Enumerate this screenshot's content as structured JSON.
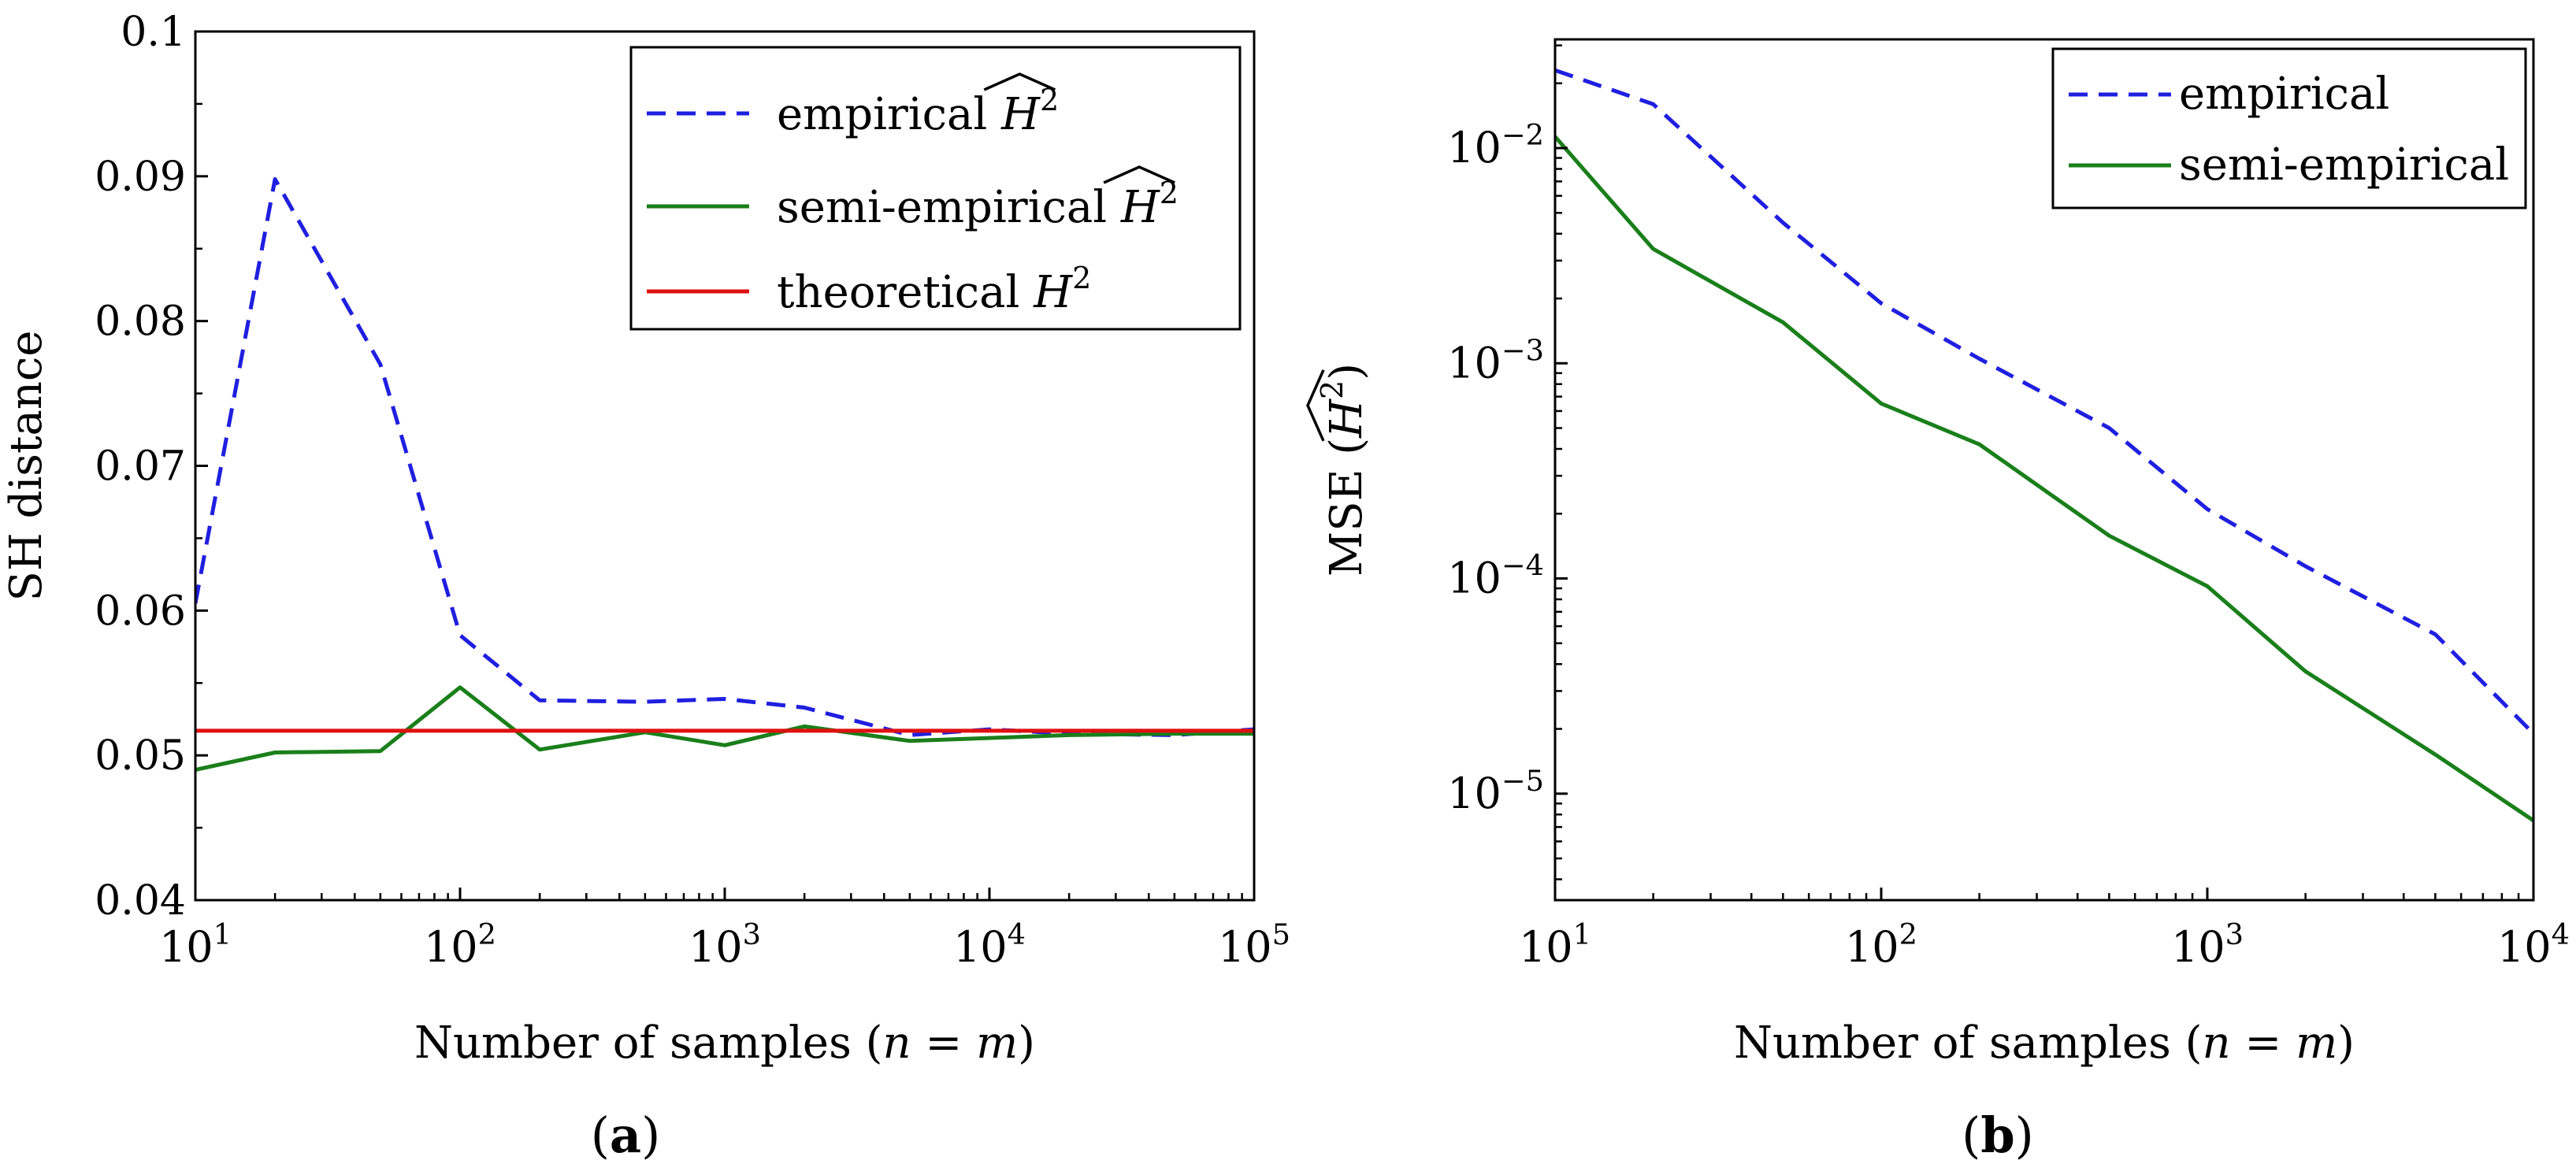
{
  "figure": {
    "panel_labels": [
      "(a)",
      "(b)"
    ]
  },
  "chart_data": [
    {
      "type": "line",
      "panel": "(a)",
      "title": "",
      "xlabel": "Number of samples (n = m)",
      "ylabel": "SH distance",
      "xscale": "log",
      "yscale": "linear",
      "xlim": [
        10,
        100000
      ],
      "ylim": [
        0.04,
        0.1
      ],
      "xticks": [
        10,
        100,
        1000,
        10000,
        100000
      ],
      "xtick_labels": [
        {
          "base": "10",
          "exp": "1"
        },
        {
          "base": "10",
          "exp": "2"
        },
        {
          "base": "10",
          "exp": "3"
        },
        {
          "base": "10",
          "exp": "4"
        },
        {
          "base": "10",
          "exp": "5"
        }
      ],
      "yticks": [
        0.04,
        0.05,
        0.06,
        0.07,
        0.08,
        0.09,
        0.1
      ],
      "ytick_labels": [
        "0.04",
        "0.05",
        "0.06",
        "0.07",
        "0.08",
        "0.09",
        "0.1"
      ],
      "legend_position": "top-right",
      "series": [
        {
          "name": "empirical Ĥ²",
          "legend_text": "empirical",
          "legend_symbol": {
            "base": "H",
            "exp": "2",
            "hat": true
          },
          "color": "#1f1fe0",
          "style": "dashed",
          "x": [
            10,
            20,
            50,
            100,
            200,
            500,
            1000,
            2000,
            5000,
            10000,
            20000,
            50000,
            100000
          ],
          "y": [
            0.0605,
            0.0898,
            0.077,
            0.0583,
            0.0538,
            0.0537,
            0.0539,
            0.0533,
            0.0514,
            0.0518,
            0.0515,
            0.0514,
            0.0518
          ]
        },
        {
          "name": "semi-empirical Ĥ²",
          "legend_text": "semi-empirical",
          "legend_symbol": {
            "base": "H",
            "exp": "2",
            "hat": true
          },
          "color": "#1a7f1a",
          "style": "solid",
          "x": [
            10,
            20,
            50,
            100,
            200,
            500,
            1000,
            2000,
            5000,
            10000,
            20000,
            50000,
            100000
          ],
          "y": [
            0.049,
            0.0502,
            0.0503,
            0.0547,
            0.0504,
            0.0516,
            0.0507,
            0.052,
            0.051,
            0.0512,
            0.0514,
            0.0515,
            0.0515
          ]
        },
        {
          "name": "theoretical H²",
          "legend_text": "theoretical",
          "legend_symbol": {
            "base": "H",
            "exp": "2",
            "hat": false
          },
          "color": "#e01010",
          "style": "solid",
          "x": [
            10,
            100000
          ],
          "y": [
            0.0517,
            0.0517
          ]
        }
      ]
    },
    {
      "type": "line",
      "panel": "(b)",
      "title": "",
      "xlabel": "Number of samples (n = m)",
      "ylabel": "MSE (Ĥ²)",
      "ylabel_prefix": "MSE",
      "ylabel_symbol": {
        "base": "H",
        "exp": "2",
        "hat": true
      },
      "xscale": "log",
      "yscale": "log",
      "xlim": [
        10,
        10000
      ],
      "ylim": [
        3.2e-06,
        0.032
      ],
      "xticks": [
        10,
        100,
        1000,
        10000
      ],
      "xtick_labels": [
        {
          "base": "10",
          "exp": "1"
        },
        {
          "base": "10",
          "exp": "2"
        },
        {
          "base": "10",
          "exp": "3"
        },
        {
          "base": "10",
          "exp": "4"
        }
      ],
      "yticks": [
        1e-05,
        0.0001,
        0.001,
        0.01
      ],
      "ytick_labels": [
        {
          "base": "10",
          "exp": "−5"
        },
        {
          "base": "10",
          "exp": "−4"
        },
        {
          "base": "10",
          "exp": "−3"
        },
        {
          "base": "10",
          "exp": "−2"
        }
      ],
      "legend_position": "top-right",
      "series": [
        {
          "name": "empirical",
          "legend_text": "empirical",
          "color": "#1f1fe0",
          "style": "dashed",
          "x": [
            10,
            20,
            50,
            100,
            200,
            500,
            1000,
            2000,
            5000,
            10000
          ],
          "y": [
            0.023,
            0.016,
            0.0045,
            0.0019,
            0.00105,
            0.0005,
            0.00021,
            0.000114,
            5.5e-05,
            1.9e-05
          ]
        },
        {
          "name": "semi-empirical",
          "legend_text": "semi-empirical",
          "color": "#1a7f1a",
          "style": "solid",
          "x": [
            10,
            20,
            50,
            100,
            200,
            500,
            1000,
            2000,
            5000,
            10000
          ],
          "y": [
            0.0113,
            0.0034,
            0.00155,
            0.00065,
            0.00042,
            0.000158,
            9.2e-05,
            3.7e-05,
            1.52e-05,
            7.5e-06
          ]
        }
      ]
    }
  ]
}
